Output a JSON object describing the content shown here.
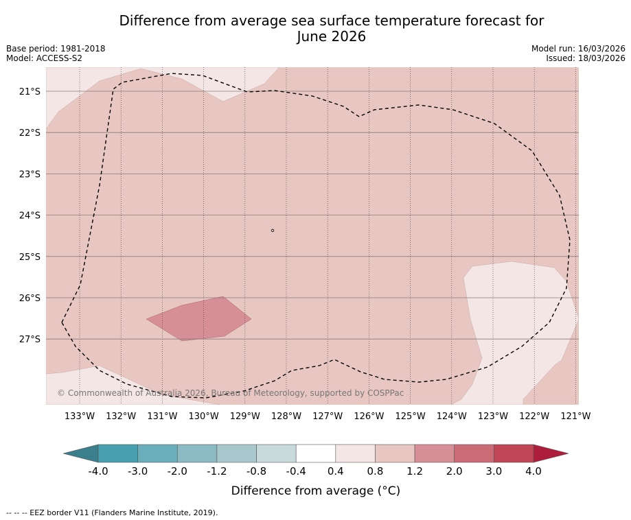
{
  "title_line1": "Difference from average sea surface temperature forecast for",
  "title_line2": "June 2026",
  "base_period": "Base period: 1981-2018",
  "model": "Model: ACCESS-S2",
  "model_run": "Model run: 16/03/2026",
  "issued": "Issued: 18/03/2026",
  "copyright": "© Commonwealth of Australia 2026, Bureau of Meteorology, supported by COSPPac",
  "lat_labels": [
    "21°S",
    "22°S",
    "23°S",
    "24°S",
    "25°S",
    "26°S",
    "27°S"
  ],
  "lon_labels": [
    "133°W",
    "132°W",
    "131°W",
    "130°W",
    "129°W",
    "128°W",
    "127°W",
    "126°W",
    "125°W",
    "124°W",
    "123°W",
    "122°W",
    "121°W"
  ],
  "colorbar": {
    "ticks": [
      "-4.0",
      "-3.0",
      "-2.0",
      "-1.2",
      "-0.8",
      "-0.4",
      "0.4",
      "0.8",
      "1.2",
      "2.0",
      "3.0",
      "4.0"
    ],
    "colors": [
      "#489fb0",
      "#6aaebb",
      "#8bb9c4",
      "#a9c8cd",
      "#c8d9dc",
      "#ffffff",
      "#f4e6e4",
      "#e8c6c1",
      "#d68f96",
      "#cb6b75",
      "#c04656"
    ],
    "under_color": "#3b7f8c",
    "over_color": "#ae1e3c",
    "label": "Difference from average (°C)"
  },
  "legend_note": "--  --  -- EEZ border V11 (Flanders Marine Institute, 2019)."
}
